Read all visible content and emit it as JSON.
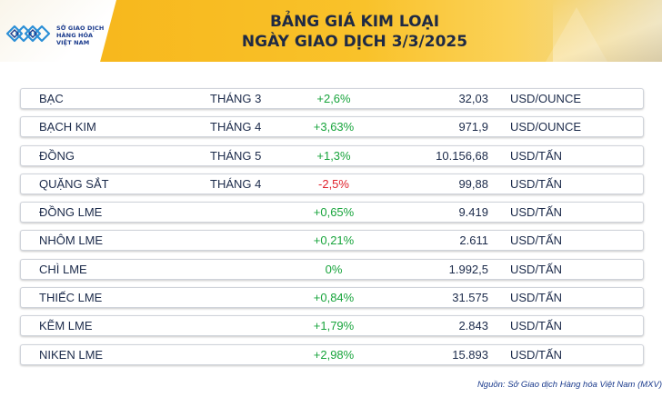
{
  "header": {
    "logo_lines": [
      "SỞ GIAO DỊCH",
      "HÀNG HÓA",
      "VIỆT NAM"
    ],
    "title_line1": "BẢNG GIÁ KIM LOẠI",
    "title_line2": "NGÀY GIAO DỊCH 3/3/2025",
    "accent_color": "#f6b418",
    "logo_color": "#1a3a8c"
  },
  "rows": [
    {
      "name": "BẠC",
      "month": "THÁNG 3",
      "change": "+2,6%",
      "trend": "up",
      "price": "32,03",
      "unit": "USD/OUNCE"
    },
    {
      "name": "BẠCH KIM",
      "month": "THÁNG 4",
      "change": "+3,63%",
      "trend": "up",
      "price": "971,9",
      "unit": "USD/OUNCE"
    },
    {
      "name": "ĐỒNG",
      "month": "THÁNG 5",
      "change": "+1,3%",
      "trend": "up",
      "price": "10.156,68",
      "unit": "USD/TẤN"
    },
    {
      "name": "QUẶNG SẮT",
      "month": "THÁNG 4",
      "change": "-2,5%",
      "trend": "down",
      "price": "99,88",
      "unit": "USD/TẤN"
    },
    {
      "name": "ĐỒNG LME",
      "month": "",
      "change": "+0,65%",
      "trend": "up",
      "price": "9.419",
      "unit": "USD/TẤN"
    },
    {
      "name": "NHÔM LME",
      "month": "",
      "change": "+0,21%",
      "trend": "up",
      "price": "2.611",
      "unit": "USD/TẤN"
    },
    {
      "name": "CHÌ LME",
      "month": "",
      "change": "0%",
      "trend": "flat",
      "price": "1.992,5",
      "unit": "USD/TẤN"
    },
    {
      "name": "THIẾC LME",
      "month": "",
      "change": "+0,84%",
      "trend": "up",
      "price": "31.575",
      "unit": "USD/TẤN"
    },
    {
      "name": "KẼM LME",
      "month": "",
      "change": "+1,79%",
      "trend": "up",
      "price": "2.843",
      "unit": "USD/TẤN"
    },
    {
      "name": "NIKEN LME",
      "month": "",
      "change": "+2,98%",
      "trend": "up",
      "price": "15.893",
      "unit": "USD/TẤN"
    }
  ],
  "colors": {
    "up": "#18a43c",
    "down": "#e0202a",
    "text": "#1b2a4a"
  },
  "footer": {
    "source": "Nguồn: Sở Giao dịch Hàng hóa Việt Nam (MXV)"
  }
}
